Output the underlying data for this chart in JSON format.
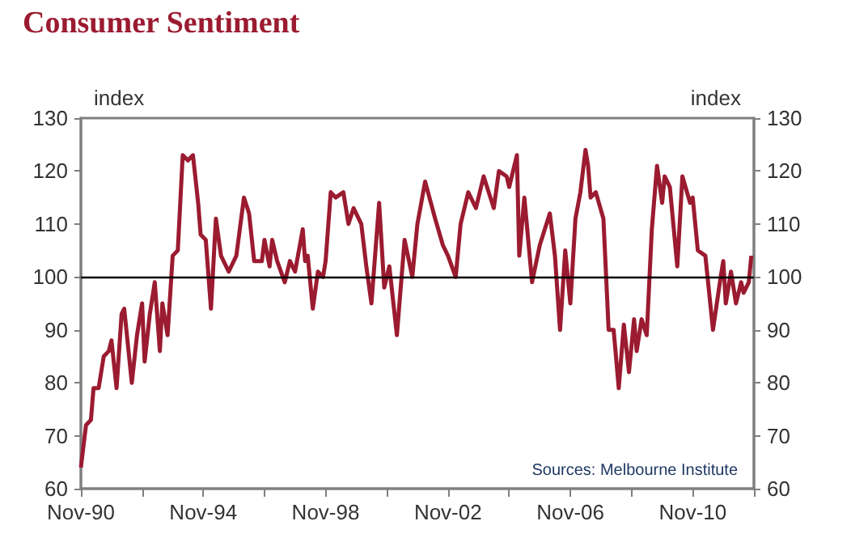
{
  "chart_data": {
    "type": "line",
    "title": "Consumer Sentiment",
    "ylabel": "index",
    "y2label": "index",
    "annotations": [
      "Sources: Melbourne Institute"
    ],
    "x": [
      "1990-11",
      "1991-01",
      "1991-03",
      "1991-04",
      "1991-06",
      "1991-08",
      "1991-10",
      "1991-11",
      "1992-01",
      "1992-03",
      "1992-04",
      "1992-07",
      "1992-09",
      "1992-11",
      "1992-12",
      "1993-02",
      "1993-04",
      "1993-06",
      "1993-07",
      "1993-09",
      "1993-11",
      "1994-01",
      "1994-03",
      "1994-05",
      "1994-07",
      "1994-09",
      "1994-10",
      "1994-12",
      "1995-02",
      "1995-04",
      "1995-06",
      "1995-09",
      "1995-12",
      "1996-03",
      "1996-05",
      "1996-07",
      "1996-10",
      "1996-11",
      "1997-01",
      "1997-02",
      "1997-04",
      "1997-07",
      "1997-09",
      "1997-11",
      "1998-02",
      "1998-03",
      "1998-04",
      "1998-06",
      "1998-08",
      "1998-10",
      "1998-11",
      "1999-01",
      "1999-03",
      "1999-06",
      "1999-08",
      "1999-10",
      "2000-01",
      "2000-03",
      "2000-05",
      "2000-08",
      "2000-10",
      "2000-12",
      "2001-03",
      "2001-06",
      "2001-09",
      "2001-11",
      "2002-02",
      "2002-06",
      "2002-09",
      "2002-11",
      "2003-02",
      "2003-04",
      "2003-07",
      "2003-10",
      "2004-01",
      "2004-05",
      "2004-07",
      "2004-10",
      "2004-11",
      "2005-02",
      "2005-03",
      "2005-05",
      "2005-08",
      "2005-11",
      "2006-03",
      "2006-05",
      "2006-07",
      "2006-09",
      "2006-11",
      "2007-01",
      "2007-03",
      "2007-05",
      "2007-06",
      "2007-07",
      "2007-09",
      "2007-12",
      "2008-02",
      "2008-04",
      "2008-06",
      "2008-08",
      "2008-10",
      "2008-12",
      "2009-01",
      "2009-03",
      "2009-05",
      "2009-07",
      "2009-09",
      "2009-11",
      "2009-12",
      "2010-02",
      "2010-05",
      "2010-07",
      "2010-10",
      "2010-11",
      "2011-01",
      "2011-04",
      "2011-07",
      "2011-10",
      "2011-11",
      "2011-12",
      "2012-02",
      "2012-04",
      "2012-06",
      "2012-07",
      "2012-09",
      "2012-10"
    ],
    "series": [
      {
        "color": "#9b1b30",
        "values": [
          64,
          72,
          73,
          79,
          79,
          85,
          86,
          88,
          79,
          93,
          94,
          80,
          89,
          95,
          84,
          93,
          99,
          86,
          95,
          89,
          104,
          105,
          123,
          122,
          123,
          114,
          108,
          107,
          94,
          111,
          104,
          101,
          104,
          115,
          112,
          103,
          103,
          107,
          102,
          107,
          103,
          99,
          103,
          101,
          109,
          103,
          104,
          94,
          101,
          100,
          103,
          116,
          115,
          116,
          110,
          113,
          110,
          102,
          95,
          114,
          98,
          102,
          89,
          107,
          100,
          110,
          118,
          111,
          106,
          104,
          100,
          110,
          116,
          113,
          119,
          113,
          120,
          119,
          117,
          123,
          104,
          115,
          99,
          106,
          112,
          104,
          90,
          105,
          95,
          111,
          116,
          124,
          121,
          115,
          116,
          111,
          90,
          90,
          79,
          91,
          82,
          92,
          86,
          92,
          89,
          109,
          121,
          114,
          119,
          117,
          102,
          119,
          114,
          115,
          105,
          104,
          90,
          100,
          103,
          95,
          101,
          95,
          99,
          97,
          99,
          104
        ]
      }
    ],
    "xlim": [
      "1990-11",
      "2012-11"
    ],
    "xticks": [
      {
        "value": "1990-11",
        "label": "Nov-90"
      },
      {
        "value": "1992-11",
        "label": null
      },
      {
        "value": "1994-11",
        "label": "Nov-94"
      },
      {
        "value": "1996-11",
        "label": null
      },
      {
        "value": "1998-11",
        "label": "Nov-98"
      },
      {
        "value": "2000-11",
        "label": null
      },
      {
        "value": "2002-11",
        "label": "Nov-02"
      },
      {
        "value": "2004-11",
        "label": null
      },
      {
        "value": "2006-11",
        "label": "Nov-06"
      },
      {
        "value": "2008-11",
        "label": null
      },
      {
        "value": "2010-11",
        "label": "Nov-10"
      },
      {
        "value": "2012-11",
        "label": null
      }
    ],
    "ylim": [
      60,
      130
    ],
    "yticks": [
      60,
      70,
      80,
      90,
      100,
      110,
      120,
      130
    ],
    "y2lim": [
      60,
      130
    ],
    "y2ticks": [
      60,
      70,
      80,
      90,
      100,
      110,
      120,
      130
    ],
    "ref_lines": [
      {
        "axis": "y",
        "value": 100,
        "color": "#000000"
      }
    ],
    "grid": false,
    "marker": "none",
    "line_style": "solid"
  }
}
